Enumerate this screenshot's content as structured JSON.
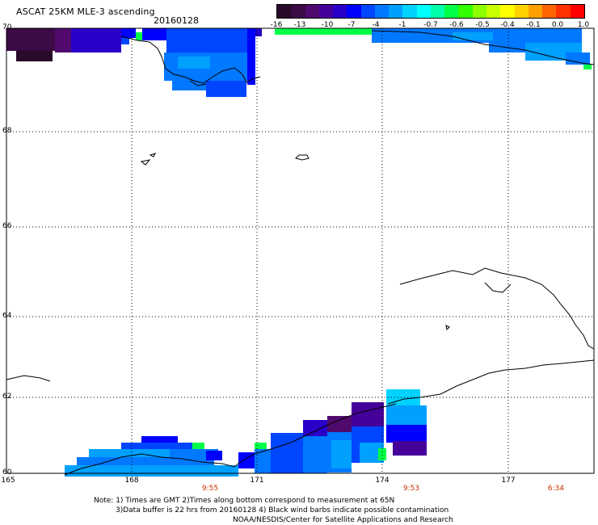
{
  "header": {
    "title": "ASCAT 25KM MLE-3 ascending",
    "date": "20160128"
  },
  "colorbar": {
    "colors": [
      "#2a0a2a",
      "#3c0a46",
      "#500a6e",
      "#46009a",
      "#2800c8",
      "#0000ff",
      "#0046ff",
      "#0078ff",
      "#00a0ff",
      "#00d2ff",
      "#00ffff",
      "#00ffaa",
      "#00ff46",
      "#32ff00",
      "#8cff00",
      "#c8ff00",
      "#ffff00",
      "#ffd200",
      "#ffa000",
      "#ff6400",
      "#ff3200",
      "#ff0000"
    ],
    "labels": [
      "-16",
      "-13",
      "-10",
      "-7",
      "-4",
      "-1",
      "-0.7",
      "-0.6",
      "-0.5",
      "-0.4",
      "-0.1",
      "0.0",
      "1.0"
    ]
  },
  "map": {
    "lat_labels": [
      "70",
      "68",
      "66",
      "64",
      "62",
      "60"
    ],
    "lon_labels": [
      "165",
      "168",
      "171",
      "174",
      "177"
    ],
    "times": [
      "9:55",
      "9:53",
      "6:34"
    ]
  },
  "notes": {
    "line1": "Note: 1) Times are GMT 2)Times along bottom correspond to measurement at 65N",
    "line2": "3)Data buffer is 22 hrs from 20160128 4) Black wind barbs indicate possible contamination",
    "line3": "NOAA/NESDIS/Center for Satellite Applications and Research"
  }
}
